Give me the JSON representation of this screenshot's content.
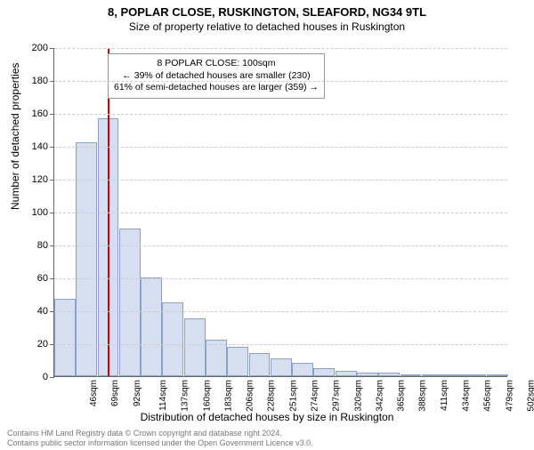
{
  "title": "8, POPLAR CLOSE, RUSKINGTON, SLEAFORD, NG34 9TL",
  "subtitle": "Size of property relative to detached houses in Ruskington",
  "ylabel": "Number of detached properties",
  "xlabel": "Distribution of detached houses by size in Ruskington",
  "chart": {
    "type": "histogram",
    "ylim": [
      0,
      200
    ],
    "ytick_step": 20,
    "bar_fill": "#d6dff0",
    "bar_stroke": "#8ca0c8",
    "grid_color": "#cccccc",
    "background": "#ffffff",
    "marker_color": "#cc0000",
    "marker_value": 100,
    "categories": [
      "46sqm",
      "69sqm",
      "92sqm",
      "114sqm",
      "137sqm",
      "160sqm",
      "183sqm",
      "206sqm",
      "228sqm",
      "251sqm",
      "274sqm",
      "297sqm",
      "320sqm",
      "342sqm",
      "365sqm",
      "388sqm",
      "411sqm",
      "434sqm",
      "456sqm",
      "479sqm",
      "502sqm"
    ],
    "values": [
      47,
      142,
      157,
      90,
      60,
      45,
      35,
      22,
      18,
      14,
      11,
      8,
      5,
      3,
      2,
      2,
      1,
      1,
      1,
      1,
      1
    ]
  },
  "annotation": {
    "line1": "8 POPLAR CLOSE: 100sqm",
    "line2": "← 39% of detached houses are smaller (230)",
    "line3": "61% of semi-detached houses are larger (359) →"
  },
  "footer": {
    "line1": "Contains HM Land Registry data © Crown copyright and database right 2024.",
    "line2": "Contains public sector information licensed under the Open Government Licence v3.0."
  }
}
